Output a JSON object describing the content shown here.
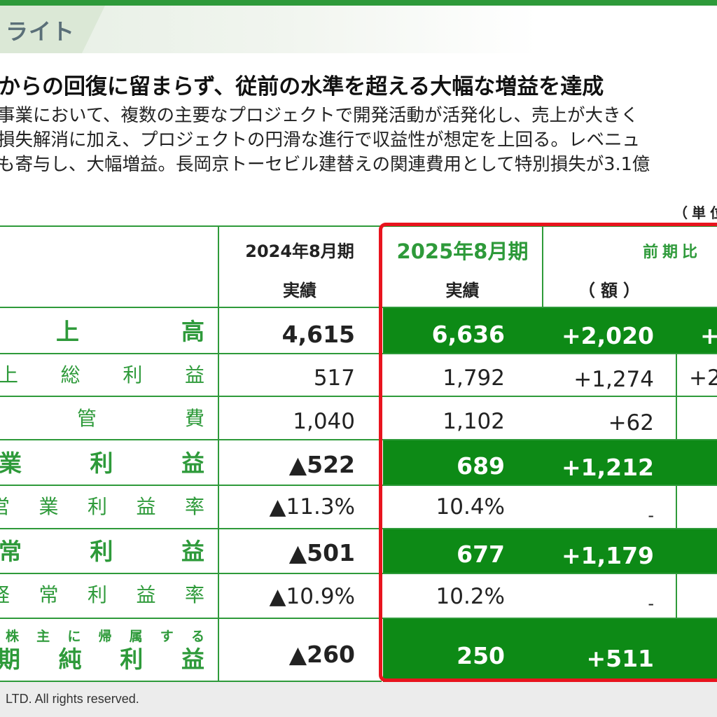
{
  "banner": {
    "title": "ライト"
  },
  "headline": "からの回復に留まらず、従前の水準を超える大幅な増益を達成",
  "body_lines": [
    "事業において、複数の主要なプロジェクトで開発活動が活発化し、売上が大きく",
    "損失解消に加え、プロジェクトの円滑な進行で収益性が想定を上回る。レベニュ",
    "も寄与し、大幅増益。長岡京トーセビル建替えの関連費用として特別損失が3.1億"
  ],
  "unit_label": "（単位",
  "table": {
    "headers": {
      "fy2024_period": "2024年8月期",
      "fy2024_sub": "実績",
      "fy2025_period": "2025年8月期",
      "fy2025_sub": "実績",
      "yoy": "前期比",
      "yoy_amount": "（額）"
    },
    "rows": [
      {
        "label": [
          "上",
          "高"
        ],
        "fy2024": "4,615",
        "fy2025": "6,636",
        "diff_amount": "+2,020",
        "diff_rate": "+",
        "highlight": true
      },
      {
        "label": [
          "上",
          "総",
          "利",
          "益"
        ],
        "fy2024": "517",
        "fy2025": "1,792",
        "diff_amount": "+1,274",
        "diff_rate": "+2",
        "highlight": false
      },
      {
        "label": [
          "管",
          "費"
        ],
        "fy2024": "1,040",
        "fy2025": "1,102",
        "diff_amount": "+62",
        "diff_rate": "",
        "highlight": false
      },
      {
        "label": [
          "業",
          "利",
          "益"
        ],
        "fy2024": "▲522",
        "fy2025": "689",
        "diff_amount": "+1,212",
        "diff_rate": "",
        "highlight": true
      },
      {
        "label": [
          "営",
          "業",
          "利",
          "益",
          "率"
        ],
        "fy2024": "▲11.3%",
        "fy2025": "10.4%",
        "diff_amount": "-",
        "diff_rate": "",
        "highlight": false
      },
      {
        "label": [
          "常",
          "利",
          "益"
        ],
        "fy2024": "▲501",
        "fy2025": "677",
        "diff_amount": "+1,179",
        "diff_rate": "",
        "highlight": true
      },
      {
        "label": [
          "経",
          "常",
          "利",
          "益",
          "率"
        ],
        "fy2024": "▲10.9%",
        "fy2025": "10.2%",
        "diff_amount": "-",
        "diff_rate": "",
        "highlight": false
      },
      {
        "sublabel": [
          "株",
          "主",
          "に",
          "帰",
          "属",
          "す",
          "る"
        ],
        "label": [
          "期",
          "純",
          "利",
          "益"
        ],
        "fy2024": "▲260",
        "fy2025": "250",
        "diff_amount": "+511",
        "diff_rate": "",
        "highlight": true
      }
    ]
  },
  "footer": "LTD. All rights reserved.",
  "colors": {
    "accent_green": "#2e9a3a",
    "band_green": "#0d8a16",
    "frame_red": "#e8141e"
  }
}
